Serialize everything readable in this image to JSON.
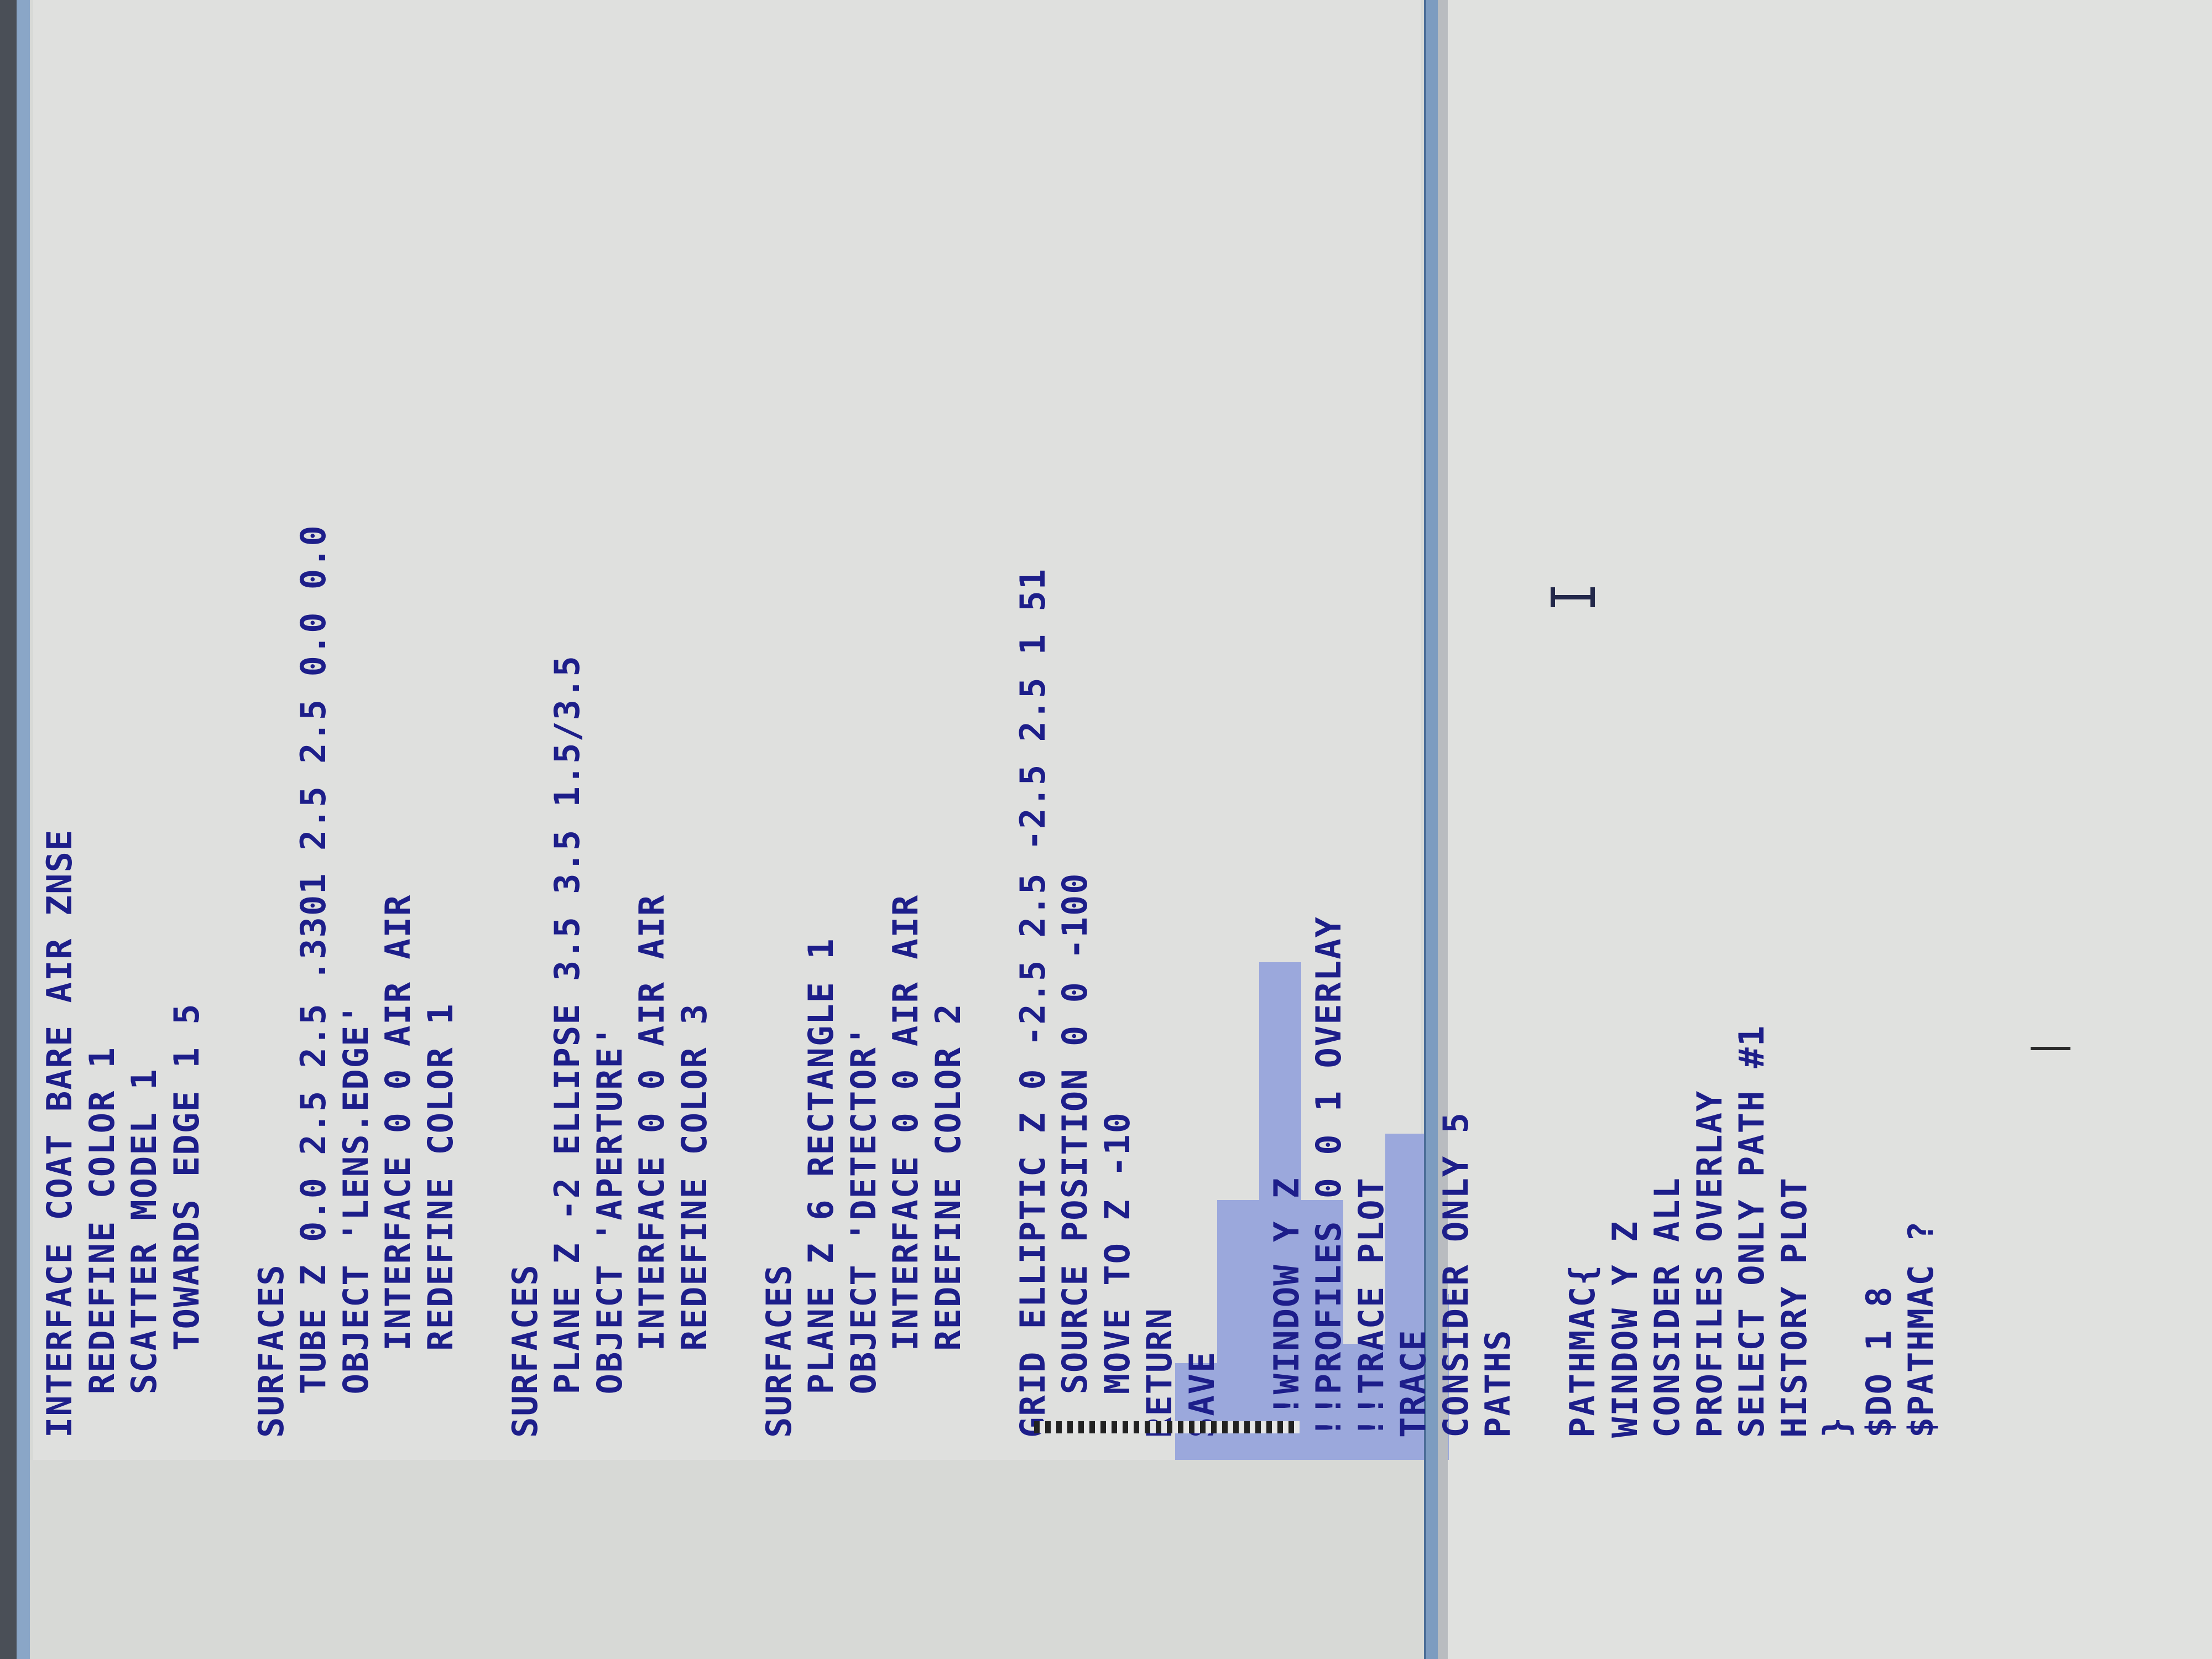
{
  "editor": {
    "lines": [
      "INTERFACE COAT BARE AIR ZNSE",
      "  REDEFINE COLOR 1",
      "  SCATTER MODEL 1",
      "    TOWARDS EDGE 1 5",
      "",
      "SURFACES",
      "  TUBE Z 0.0 2.5 2.5 .3301 2.5 2.5 0.0 0.0",
      "  OBJECT 'LENS.EDGE'",
      "    INTERFACE 0 0 AIR AIR",
      "    REDEFINE COLOR 1",
      "",
      "SURFACES",
      "  PLANE Z -2 ELLIPSE 3.5 3.5 1.5/3.5",
      "  OBJECT 'APERTURE'",
      "    INTERFACE 0 0 AIR AIR",
      "    REDEFINE COLOR 3",
      "",
      "SURFACES",
      "  PLANE Z 6 RECTANGLE 1",
      "  OBJECT 'DETECTOR'",
      "    INTERFACE 0 0 AIR AIR",
      "    REDEFINE COLOR 2",
      "",
      "GRID ELLIPTIC Z 0 -2.5 2.5 -2.5 2.5 1 51",
      "  SOURCE POSITION 0 0 -100",
      "  MOVE TO Z -10",
      "RETURN",
      "SAVE",
      "",
      "!!WINDOW Y Z",
      "!!PROFILES 0 0 1 OVERLAY",
      "!!TRACE PLOT",
      "TRACE",
      "CONSIDER ONLY 5",
      "PATHS",
      "",
      "PATHMAC{",
      "WINDOW Y Z",
      "CONSIDER ALL",
      "PROFILES OVERLAY",
      "SELECT ONLY PATH #1",
      "HISTORY PLOT",
      "}",
      "$DO 1 8",
      "$PATHMAC ?"
    ]
  }
}
